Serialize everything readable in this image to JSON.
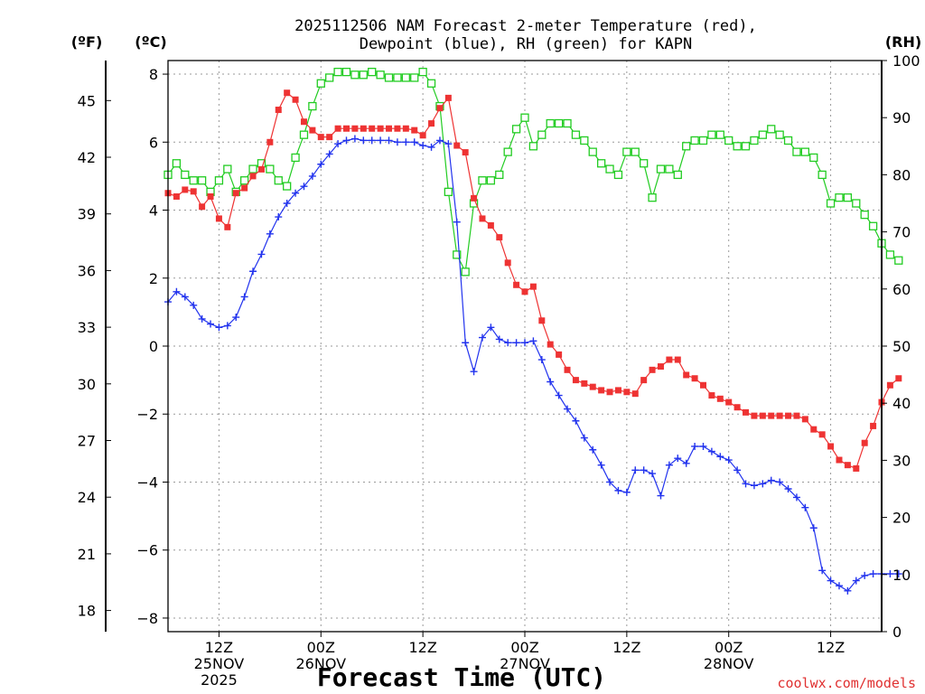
{
  "chart_data": {
    "type": "line",
    "title_line1": "2025112506 NAM Forecast 2-meter Temperature (red),",
    "title_line2": "Dewpoint (blue), RH (green) for KAPN",
    "xlabel": "Forecast Time (UTC)",
    "watermark": "coolwx.com/models",
    "unit_labels": {
      "f": "(ºF)",
      "c": "(ºC)",
      "rh": "(RH)"
    },
    "x_range_hours": [
      -6.0,
      78.0
    ],
    "c_range": [
      -8.4,
      8.4
    ],
    "f_range": [
      16.88,
      47.12
    ],
    "rh_range": [
      0,
      100
    ],
    "c_ticks": [
      "8",
      "6",
      "4",
      "2",
      "0",
      "−2",
      "−4",
      "−6",
      "−8"
    ],
    "c_tick_values": [
      8,
      6,
      4,
      2,
      0,
      -2,
      -4,
      -6,
      -8
    ],
    "f_ticks": [
      "45",
      "42",
      "39",
      "36",
      "33",
      "30",
      "27",
      "24",
      "21",
      "18"
    ],
    "f_tick_values": [
      45,
      42,
      39,
      36,
      33,
      30,
      27,
      24,
      21,
      18
    ],
    "rh_ticks": [
      "100",
      "90",
      "80",
      "70",
      "60",
      "50",
      "40",
      "30",
      "20",
      "10",
      "0"
    ],
    "rh_tick_values": [
      100,
      90,
      80,
      70,
      60,
      50,
      40,
      30,
      20,
      10,
      0
    ],
    "x_ticks": [
      {
        "hour": 0,
        "lines": [
          "12Z",
          "25NOV",
          "2025"
        ]
      },
      {
        "hour": 12,
        "lines": [
          "00Z",
          "26NOV"
        ]
      },
      {
        "hour": 24,
        "lines": [
          "12Z"
        ]
      },
      {
        "hour": 36,
        "lines": [
          "00Z",
          "27NOV"
        ]
      },
      {
        "hour": 48,
        "lines": [
          "12Z"
        ]
      },
      {
        "hour": 60,
        "lines": [
          "00Z",
          "28NOV"
        ]
      },
      {
        "hour": 72,
        "lines": [
          "12Z"
        ]
      }
    ],
    "x_hours_start": -6,
    "x_hours_step": 1,
    "series": [
      {
        "name": "Temperature",
        "unit": "C",
        "color": "#ee3333",
        "marker": "filled-square",
        "values": [
          4.5,
          4.4,
          4.6,
          4.55,
          4.1,
          4.4,
          3.75,
          3.5,
          4.5,
          4.65,
          5,
          5.2,
          6,
          6.95,
          7.45,
          7.25,
          6.6,
          6.35,
          6.15,
          6.15,
          6.4,
          6.4,
          6.4,
          6.4,
          6.4,
          6.4,
          6.4,
          6.4,
          6.4,
          6.35,
          6.2,
          6.55,
          7,
          7.3,
          5.9,
          5.7,
          4.35,
          3.75,
          3.55,
          3.2,
          2.45,
          1.8,
          1.6,
          1.75,
          0.75,
          0.05,
          -0.25,
          -0.7,
          -1,
          -1.1,
          -1.2,
          -1.3,
          -1.35,
          -1.3,
          -1.35,
          -1.4,
          -1,
          -0.7,
          -0.6,
          -0.4,
          -0.4,
          -0.85,
          -0.95,
          -1.15,
          -1.45,
          -1.55,
          -1.65,
          -1.8,
          -1.95,
          -2.05,
          -2.05,
          -2.05,
          -2.05,
          -2.05,
          -2.05,
          -2.15,
          -2.45,
          -2.6,
          -2.95,
          -3.35,
          -3.5,
          -3.6,
          -2.85,
          -2.35,
          -1.65,
          -1.15,
          -0.95
        ]
      },
      {
        "name": "Dewpoint",
        "unit": "C",
        "color": "#2233ee",
        "marker": "plus",
        "values": [
          1.3,
          1.6,
          1.45,
          1.2,
          0.8,
          0.65,
          0.55,
          0.6,
          0.85,
          1.45,
          2.2,
          2.7,
          3.3,
          3.8,
          4.2,
          4.5,
          4.7,
          5.0,
          5.35,
          5.65,
          5.95,
          6.05,
          6.1,
          6.05,
          6.05,
          6.05,
          6.05,
          6.0,
          6.0,
          6.0,
          5.9,
          5.85,
          6.05,
          5.95,
          3.65,
          0.1,
          -0.75,
          0.25,
          0.55,
          0.2,
          0.1,
          0.1,
          0.1,
          0.15,
          -0.4,
          -1.05,
          -1.45,
          -1.85,
          -2.2,
          -2.7,
          -3.05,
          -3.5,
          -4.0,
          -4.25,
          -4.3,
          -3.65,
          -3.65,
          -3.75,
          -4.4,
          -3.5,
          -3.3,
          -3.45,
          -2.95,
          -2.95,
          -3.1,
          -3.25,
          -3.35,
          -3.65,
          -4.05,
          -4.1,
          -4.05,
          -3.95,
          -4.0,
          -4.2,
          -4.45,
          -4.75,
          -5.35,
          -6.6,
          -6.9,
          -7.05,
          -7.2,
          -6.9,
          -6.75,
          -6.7,
          -6.7,
          -6.7,
          -6.7
        ]
      },
      {
        "name": "RH",
        "unit": "%",
        "color": "#22cc22",
        "marker": "open-square",
        "values": [
          80,
          82,
          80,
          79,
          79,
          77,
          79,
          81,
          77,
          79,
          81,
          82,
          81,
          79,
          78,
          83,
          87,
          92,
          96,
          97,
          98,
          98,
          97.5,
          97.5,
          98,
          97.5,
          97,
          97,
          97,
          97,
          98,
          96,
          92,
          77,
          66,
          63,
          75,
          79,
          79,
          80,
          84,
          88,
          90,
          85,
          87,
          89,
          89,
          89,
          87,
          86,
          84,
          82,
          81,
          80,
          84,
          84,
          82,
          76,
          81,
          81,
          80,
          85,
          86,
          86,
          87,
          87,
          86,
          85,
          85,
          86,
          87,
          88,
          87,
          86,
          84,
          84,
          83,
          80,
          75,
          76,
          76,
          75,
          73,
          71,
          68,
          66,
          65
        ]
      }
    ]
  }
}
